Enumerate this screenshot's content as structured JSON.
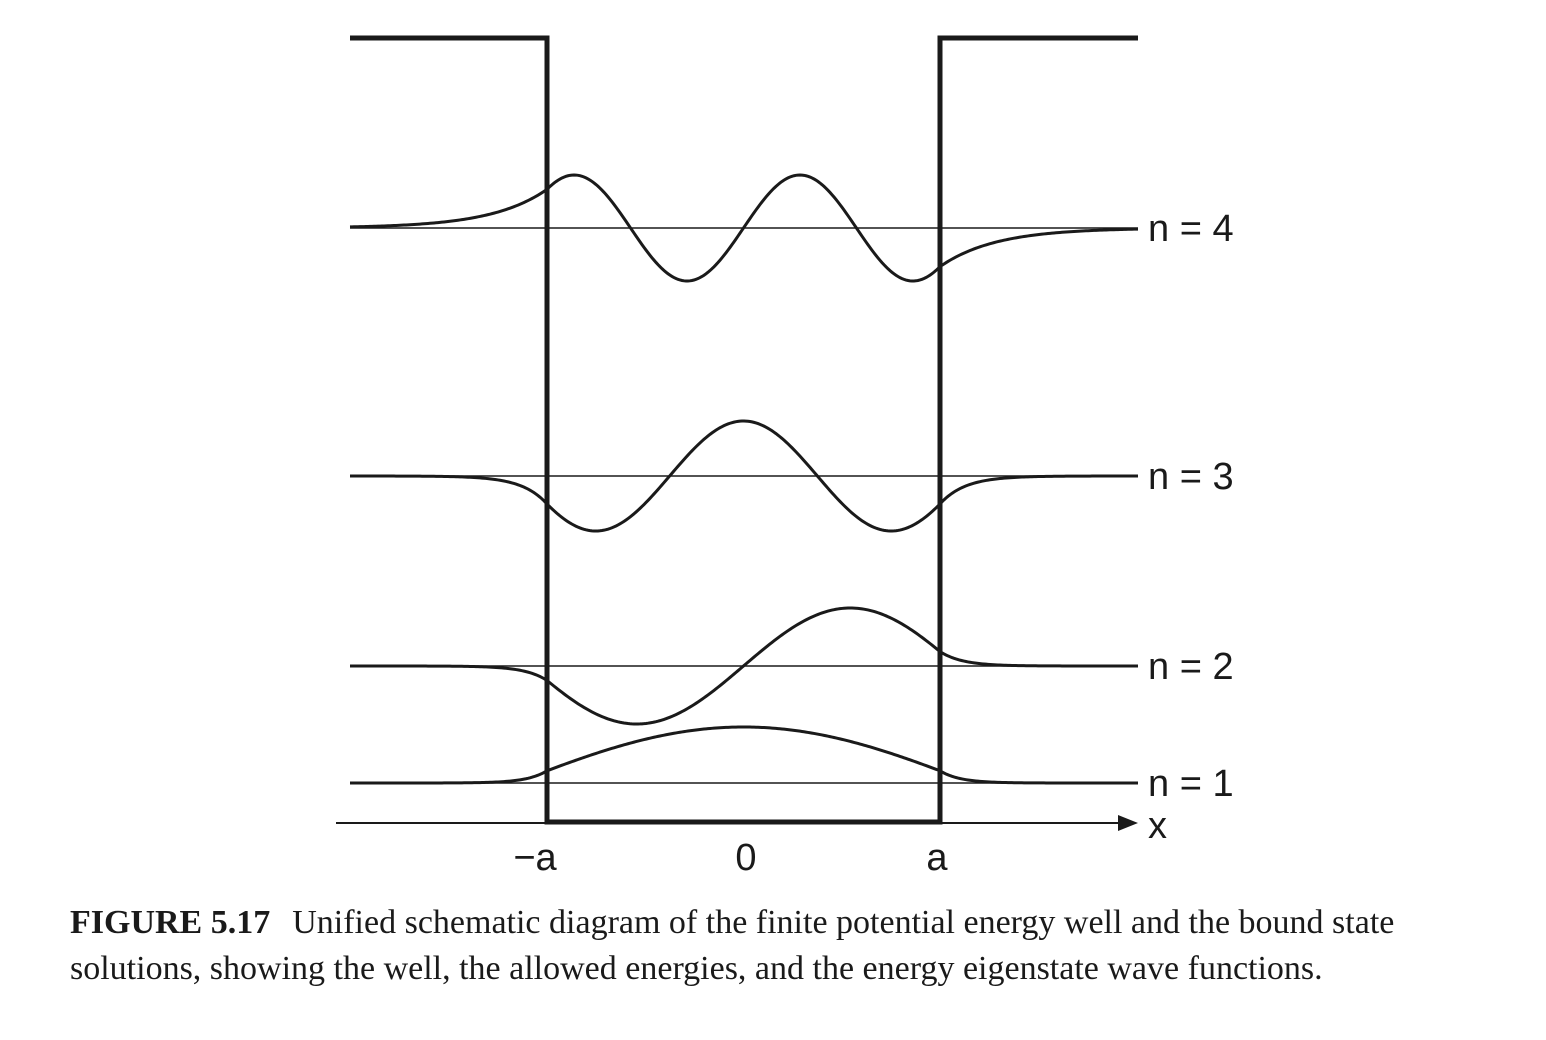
{
  "diagram": {
    "x_axis": {
      "label": "x",
      "ticks": [
        "−a",
        "0",
        "a"
      ]
    },
    "levels": [
      {
        "n": 1,
        "label": "n = 1"
      },
      {
        "n": 2,
        "label": "n = 2"
      },
      {
        "n": 3,
        "label": "n = 3"
      },
      {
        "n": 4,
        "label": "n = 4"
      }
    ]
  },
  "caption": {
    "figure_number": "FIGURE 5.17",
    "text": "Unified schematic diagram of the finite potential energy well and the bound state solutions, showing the well, the allowed energies, and the energy eigenstate wave functions."
  },
  "colors": {
    "ink": "#1a1a1a",
    "background": "#ffffff"
  }
}
